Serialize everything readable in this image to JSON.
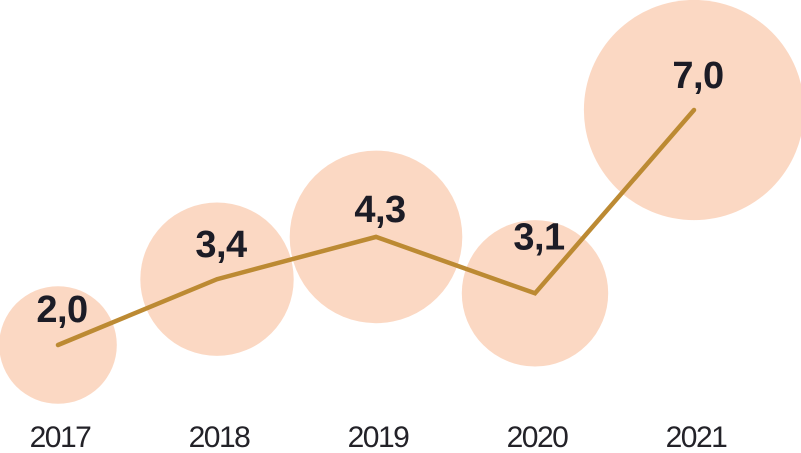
{
  "chart_data": {
    "type": "line",
    "variant": "bubble-line",
    "title": "",
    "xlabel": "",
    "ylabel": "",
    "categories": [
      "2017",
      "2018",
      "2019",
      "2020",
      "2021"
    ],
    "values": [
      2.0,
      3.4,
      4.3,
      3.1,
      7.0
    ],
    "value_labels": [
      "2,0",
      "3,4",
      "4,3",
      "3,1",
      "7,0"
    ],
    "decimal_separator": ",",
    "bubble_area_proportional_to_value": true,
    "grid": false,
    "legend": false,
    "axes_visible": false,
    "colors": {
      "background": "#FFFFFF",
      "bubble_fill": "#FACEB4",
      "bubble_opacity": 0.8,
      "line": "#BC8A33",
      "value_label": "#1C1C26",
      "year_label": "#232228"
    }
  }
}
